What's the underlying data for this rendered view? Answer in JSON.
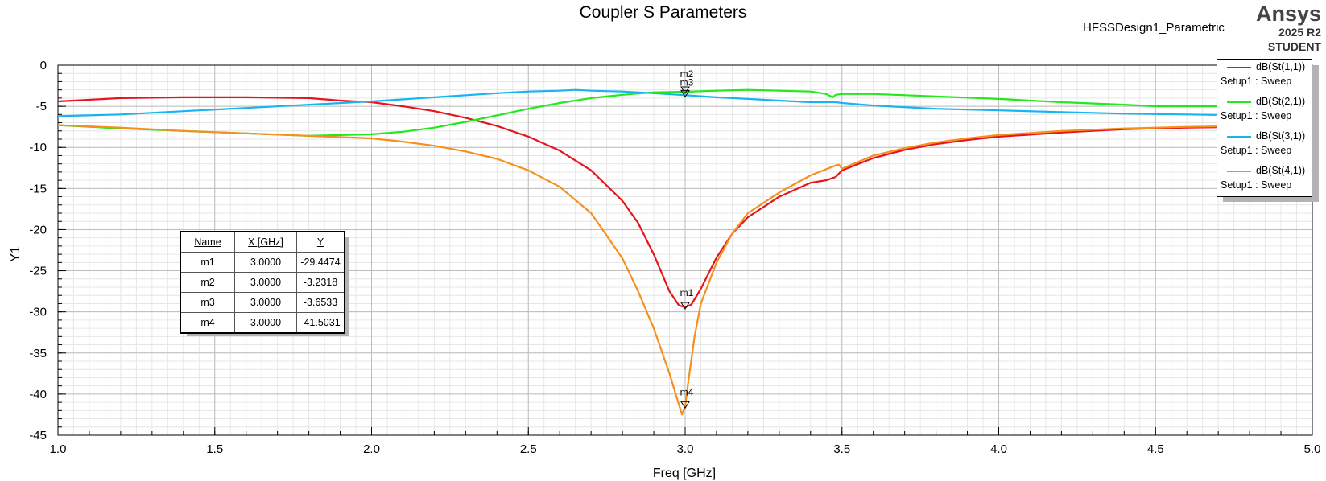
{
  "chart_data": {
    "type": "line",
    "title": "Coupler S Parameters",
    "subtitle": "HFSSDesign1_Parametric",
    "xlabel": "Freq [GHz]",
    "ylabel": "Y1",
    "xlim": [
      1.0,
      5.0
    ],
    "ylim": [
      -45,
      0
    ],
    "xticks": [
      "1.0",
      "1.5",
      "2.0",
      "2.5",
      "3.0",
      "3.5",
      "4.0",
      "4.5",
      "5.0"
    ],
    "yticks": [
      "0",
      "-5",
      "-10",
      "-15",
      "-20",
      "-25",
      "-30",
      "-35",
      "-40",
      "-45"
    ],
    "grid": true,
    "legend_position": "top-right",
    "series": [
      {
        "name": "dB(St(1,1))",
        "setup": "Setup1 : Sweep",
        "color": "#e8141c",
        "x": [
          1.0,
          1.2,
          1.4,
          1.6,
          1.8,
          1.9,
          2.0,
          2.1,
          2.2,
          2.3,
          2.4,
          2.5,
          2.6,
          2.7,
          2.8,
          2.85,
          2.9,
          2.95,
          2.98,
          3.0,
          3.02,
          3.05,
          3.1,
          3.15,
          3.2,
          3.3,
          3.4,
          3.45,
          3.48,
          3.5,
          3.6,
          3.7,
          3.8,
          3.9,
          4.0,
          4.2,
          4.4,
          4.6,
          4.8,
          5.0
        ],
        "y": [
          -4.4,
          -4.0,
          -3.9,
          -3.9,
          -4.0,
          -4.3,
          -4.5,
          -5.0,
          -5.6,
          -6.4,
          -7.4,
          -8.7,
          -10.4,
          -12.8,
          -16.5,
          -19.2,
          -23.0,
          -27.5,
          -29.2,
          -29.45,
          -29.1,
          -27.2,
          -23.4,
          -20.5,
          -18.5,
          -16.0,
          -14.3,
          -14.0,
          -13.6,
          -12.8,
          -11.3,
          -10.3,
          -9.6,
          -9.1,
          -8.7,
          -8.2,
          -7.8,
          -7.6,
          -7.5,
          -7.5
        ]
      },
      {
        "name": "dB(St(2,1))",
        "setup": "Setup1 : Sweep",
        "color": "#22e81c",
        "x": [
          1.0,
          1.2,
          1.4,
          1.6,
          1.8,
          2.0,
          2.1,
          2.2,
          2.3,
          2.4,
          2.5,
          2.6,
          2.7,
          2.8,
          2.9,
          3.0,
          3.1,
          3.2,
          3.3,
          3.4,
          3.45,
          3.47,
          3.48,
          3.5,
          3.6,
          3.8,
          4.0,
          4.2,
          4.4,
          4.5,
          4.6,
          4.8,
          5.0
        ],
        "y": [
          -7.3,
          -7.7,
          -8.0,
          -8.3,
          -8.6,
          -8.4,
          -8.1,
          -7.6,
          -6.9,
          -6.1,
          -5.3,
          -4.6,
          -4.0,
          -3.6,
          -3.3,
          -3.23,
          -3.1,
          -3.0,
          -3.1,
          -3.2,
          -3.5,
          -3.9,
          -3.6,
          -3.5,
          -3.5,
          -3.8,
          -4.1,
          -4.5,
          -4.8,
          -5.0,
          -5.0,
          -5.0,
          -5.0
        ]
      },
      {
        "name": "dB(St(3,1))",
        "setup": "Setup1 : Sweep",
        "color": "#18b4f0",
        "x": [
          1.0,
          1.2,
          1.4,
          1.6,
          1.8,
          2.0,
          2.2,
          2.4,
          2.5,
          2.6,
          2.65,
          2.7,
          2.8,
          2.9,
          3.0,
          3.1,
          3.2,
          3.3,
          3.4,
          3.48,
          3.5,
          3.6,
          3.8,
          4.0,
          4.2,
          4.4,
          4.6,
          4.8,
          5.0
        ],
        "y": [
          -6.2,
          -6.0,
          -5.6,
          -5.2,
          -4.8,
          -4.4,
          -3.9,
          -3.4,
          -3.2,
          -3.1,
          -3.0,
          -3.1,
          -3.2,
          -3.4,
          -3.65,
          -3.9,
          -4.1,
          -4.3,
          -4.5,
          -4.5,
          -4.6,
          -4.9,
          -5.3,
          -5.5,
          -5.7,
          -5.9,
          -6.0,
          -6.1,
          -6.1
        ]
      },
      {
        "name": "dB(St(4,1))",
        "setup": "Setup1 : Sweep",
        "color": "#f5901e",
        "x": [
          1.0,
          1.2,
          1.4,
          1.6,
          1.8,
          2.0,
          2.1,
          2.2,
          2.3,
          2.4,
          2.5,
          2.6,
          2.7,
          2.8,
          2.85,
          2.9,
          2.95,
          2.97,
          2.99,
          3.0,
          3.01,
          3.03,
          3.05,
          3.1,
          3.15,
          3.2,
          3.3,
          3.4,
          3.48,
          3.49,
          3.5,
          3.6,
          3.7,
          3.8,
          3.9,
          4.0,
          4.2,
          4.4,
          4.6,
          4.8,
          5.0
        ],
        "y": [
          -7.3,
          -7.6,
          -8.0,
          -8.3,
          -8.6,
          -8.9,
          -9.3,
          -9.8,
          -10.5,
          -11.4,
          -12.8,
          -14.8,
          -18.0,
          -23.5,
          -27.5,
          -32.0,
          -37.5,
          -40.0,
          -42.5,
          -41.5,
          -38.5,
          -33.0,
          -29.0,
          -24.0,
          -20.5,
          -18.0,
          -15.5,
          -13.4,
          -12.2,
          -12.1,
          -12.6,
          -11.0,
          -10.1,
          -9.4,
          -8.9,
          -8.5,
          -8.0,
          -7.7,
          -7.5,
          -7.4,
          -7.3
        ]
      }
    ],
    "markers": [
      {
        "name": "m1",
        "x": 3.0,
        "y": -29.4474,
        "x_text": "3.0000",
        "y_text": "-29.4474"
      },
      {
        "name": "m2",
        "x": 3.0,
        "y": -3.2318,
        "x_text": "3.0000",
        "y_text": "-3.2318"
      },
      {
        "name": "m3",
        "x": 3.0,
        "y": -3.6533,
        "x_text": "3.0000",
        "y_text": "-3.6533"
      },
      {
        "name": "m4",
        "x": 3.0,
        "y": -41.5031,
        "x_text": "3.0000",
        "y_text": "-41.5031"
      }
    ],
    "marker_table": {
      "headers": [
        "Name",
        "X [GHz]",
        "Y"
      ]
    }
  },
  "brand": {
    "name": "Ansys",
    "version": "2025 R2",
    "edition": "STUDENT"
  }
}
